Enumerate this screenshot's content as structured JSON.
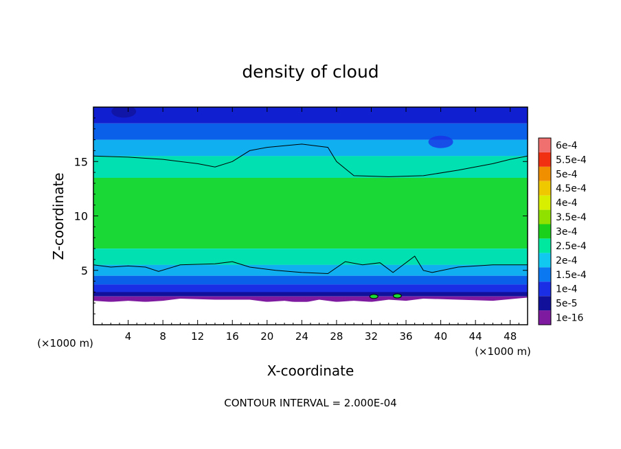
{
  "chart_data": {
    "type": "heatmap",
    "title": "density of cloud",
    "xlabel": "X-coordinate",
    "ylabel": "Z-coordinate",
    "x_unit_left": "(×1000 m)",
    "x_unit_right": "(×1000 m)",
    "xlim": [
      0,
      50
    ],
    "ylim": [
      0,
      20
    ],
    "x_ticks": [
      4,
      8,
      12,
      16,
      20,
      24,
      28,
      32,
      36,
      40,
      44,
      48
    ],
    "x_tick_labels": [
      "4",
      "8",
      "12",
      "16",
      "20",
      "24",
      "28",
      "32",
      "36",
      "40",
      "44",
      "48"
    ],
    "y_ticks": [
      5,
      10,
      15
    ],
    "y_tick_labels": [
      "5",
      "10",
      "15"
    ],
    "footer": "CONTOUR INTERVAL = 2.000E-04",
    "legend_position": "right",
    "colorbar": {
      "levels": [
        {
          "label": "1e-16",
          "color": "#7d1aa0"
        },
        {
          "label": "5e-5",
          "color": "#10109a"
        },
        {
          "label": "1e-4",
          "color": "#1a2ee6"
        },
        {
          "label": "1.5e-4",
          "color": "#0a78f0"
        },
        {
          "label": "2e-4",
          "color": "#10c8f0"
        },
        {
          "label": "2.5e-4",
          "color": "#00e8a0"
        },
        {
          "label": "3e-4",
          "color": "#1ad01a"
        },
        {
          "label": "3.5e-4",
          "color": "#90e000"
        },
        {
          "label": "4e-4",
          "color": "#d8f000"
        },
        {
          "label": "4.5e-4",
          "color": "#f0c800"
        },
        {
          "label": "5e-4",
          "color": "#f09000"
        },
        {
          "label": "5.5e-4",
          "color": "#f03010"
        },
        {
          "label": "6e-4",
          "color": "#f07070"
        }
      ]
    },
    "bands": [
      {
        "z_bottom": 18.5,
        "z_top": 20.0,
        "color": "#1020d0"
      },
      {
        "z_bottom": 17.0,
        "z_top": 18.5,
        "color": "#0a60e8"
      },
      {
        "z_bottom": 15.5,
        "z_top": 17.0,
        "color": "#10b0f0"
      },
      {
        "z_bottom": 13.5,
        "z_top": 15.5,
        "color": "#00e0b0"
      },
      {
        "z_bottom": 7.0,
        "z_top": 13.5,
        "color": "#1ad836"
      },
      {
        "z_bottom": 5.5,
        "z_top": 7.0,
        "color": "#00e0b0"
      },
      {
        "z_bottom": 4.5,
        "z_top": 5.5,
        "color": "#10b0f0"
      },
      {
        "z_bottom": 3.7,
        "z_top": 4.5,
        "color": "#0a60e8"
      },
      {
        "z_bottom": 3.0,
        "z_top": 3.7,
        "color": "#1a2ee6"
      },
      {
        "z_bottom": 2.6,
        "z_top": 3.0,
        "color": "#10109a"
      },
      {
        "z_bottom": 2.1,
        "z_top": 2.6,
        "color": "#7d1aa0"
      }
    ],
    "upper_contour": {
      "x": [
        0,
        4,
        8,
        12,
        14,
        16,
        18,
        20,
        24,
        27,
        28,
        30,
        34,
        38,
        42,
        46,
        48,
        50
      ],
      "z": [
        15.5,
        15.4,
        15.2,
        14.8,
        14.5,
        15.0,
        16.0,
        16.3,
        16.6,
        16.3,
        15.0,
        13.7,
        13.6,
        13.7,
        14.2,
        14.8,
        15.2,
        15.5
      ]
    },
    "lower_contour": {
      "x": [
        0,
        2,
        4,
        6,
        7.5,
        10,
        14,
        16,
        18,
        21,
        24,
        27,
        29,
        31,
        33,
        34.5,
        35.5,
        37,
        38,
        39,
        42,
        46,
        50
      ],
      "z": [
        5.5,
        5.3,
        5.4,
        5.3,
        4.9,
        5.5,
        5.6,
        5.8,
        5.3,
        5.0,
        4.8,
        4.7,
        5.8,
        5.5,
        5.7,
        4.8,
        5.4,
        6.3,
        5.0,
        4.8,
        5.3,
        5.5,
        5.5
      ]
    },
    "cloud_base": {
      "x": [
        0,
        2,
        4,
        6,
        8,
        10,
        14,
        18,
        20,
        22,
        24,
        26,
        28,
        30,
        32,
        34,
        36,
        38,
        42,
        46,
        50
      ],
      "z": [
        2.2,
        2.1,
        2.2,
        2.1,
        2.2,
        2.4,
        2.3,
        2.3,
        2.1,
        2.2,
        2.0,
        2.3,
        2.1,
        2.2,
        2.1,
        2.3,
        2.2,
        2.4,
        2.3,
        2.2,
        2.5
      ]
    },
    "dark_spots": [
      {
        "x": 3.5,
        "z": 19.6,
        "color": "#10109a"
      },
      {
        "x": 40.0,
        "z": 16.8,
        "color": "#1a2ee6"
      }
    ],
    "green_spots": [
      {
        "x": 32.3,
        "z": 2.6
      },
      {
        "x": 35.0,
        "z": 2.65
      }
    ]
  }
}
